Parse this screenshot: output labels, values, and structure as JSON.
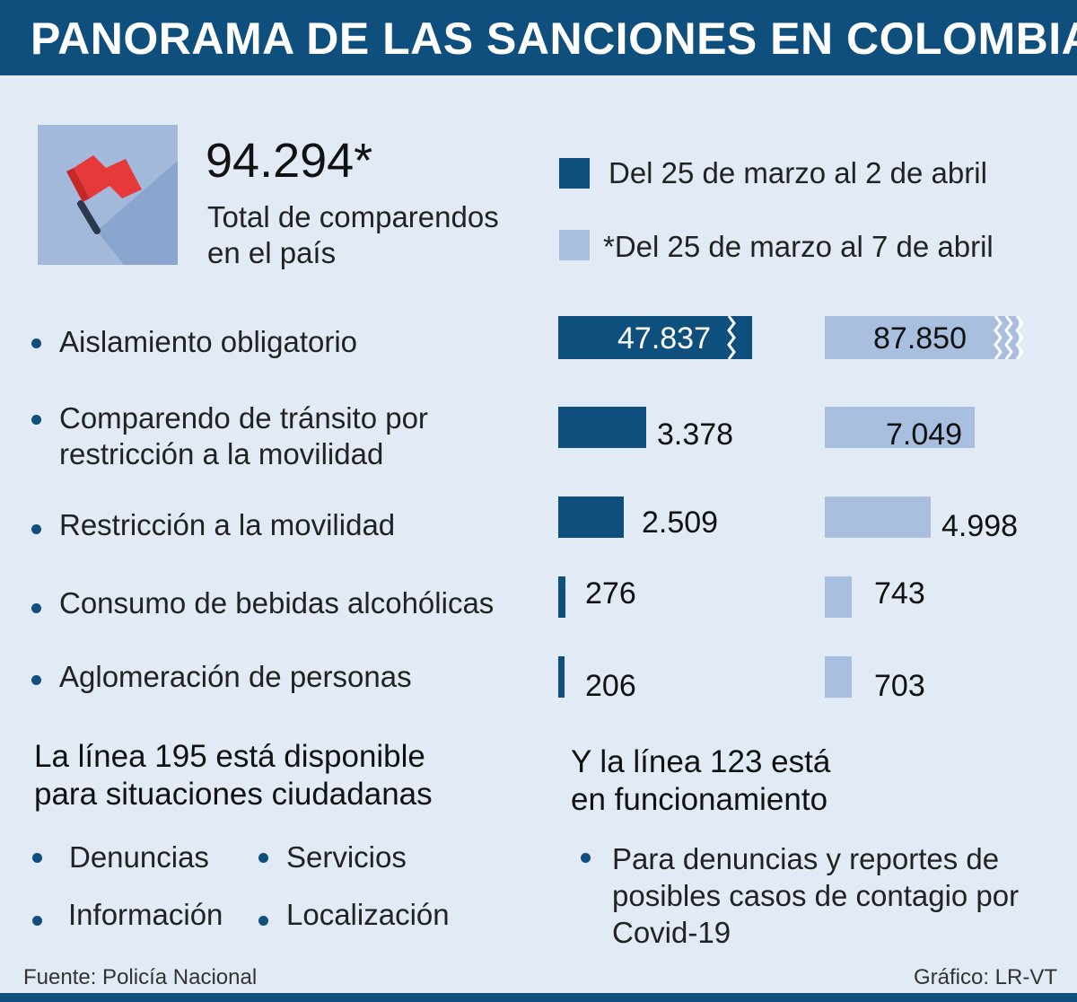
{
  "header": {
    "title": "PANORAMA DE LAS SANCIONES EN COLOMBIA"
  },
  "icon": {
    "name": "red-flag-icon"
  },
  "total": {
    "value": "94.294*",
    "label": "Total de comparendos en el país"
  },
  "legend": [
    {
      "label": "Del 25 de marzo al 2 de abril",
      "color": "#0f4f7e"
    },
    {
      "label": "*Del 25 de marzo al 7 de abril",
      "color": "#a9bfe0"
    }
  ],
  "chart_data": {
    "type": "bar",
    "orientation": "horizontal",
    "categories": [
      "Aislamiento obligatorio",
      "Comparendo de tránsito por restricción a la movilidad",
      "Restricción a la movilidad",
      "Consumo de bebidas alcohólicas",
      "Aglomeración de personas"
    ],
    "series": [
      {
        "name": "Del 25 de marzo al 2 de abril",
        "color": "#0f4f7e",
        "values": [
          47837,
          3378,
          2509,
          276,
          206
        ],
        "labels": [
          "47.837",
          "3.378",
          "2.509",
          "276",
          "206"
        ],
        "broken": [
          true,
          false,
          false,
          false,
          false
        ]
      },
      {
        "name": "*Del 25 de marzo al 7 de abril",
        "color": "#a9bfe0",
        "values": [
          87850,
          7049,
          4998,
          743,
          703
        ],
        "labels": [
          "87.850",
          "7.049",
          "4.998",
          "743",
          "703"
        ],
        "broken": [
          true,
          false,
          false,
          false,
          false
        ]
      }
    ]
  },
  "line195": {
    "title": "La línea 195 está disponible para situaciones ciudadanas",
    "items": [
      "Denuncias",
      "Servicios",
      "Información",
      "Localización"
    ]
  },
  "line123": {
    "title": "Y la línea 123 está en funcionamiento",
    "note": "Para denuncias y reportes de posibles casos de contagio por Covid-19"
  },
  "footer": {
    "source": "Fuente: Policía Nacional",
    "credit": "Gráfico: LR-VT"
  }
}
